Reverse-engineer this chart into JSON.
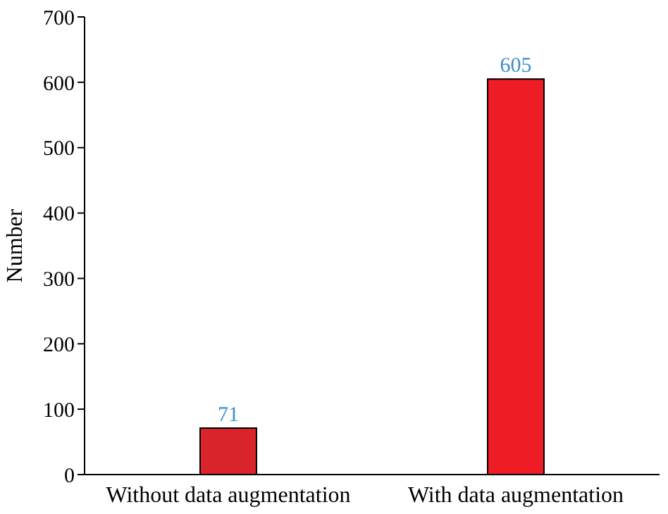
{
  "chart_data": {
    "type": "bar",
    "ylabel": "Number",
    "categories": [
      "Without data augmentation",
      "With data augmentation"
    ],
    "values": [
      71,
      605
    ],
    "colors": [
      "#d8242a",
      "#ee1c25"
    ],
    "ylim": [
      0,
      700
    ],
    "yticks": [
      0,
      100,
      200,
      300,
      400,
      500,
      600,
      700
    ],
    "grid": false,
    "data_labels": true
  }
}
